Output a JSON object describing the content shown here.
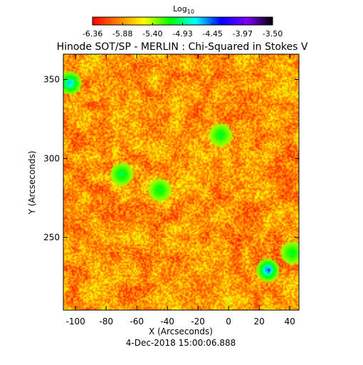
{
  "chart_data": {
    "type": "heatmap",
    "title": "Hinode SOT/SP - MERLIN : Chi-Squared in Stokes V",
    "xlabel": "X (Arcseconds)",
    "ylabel": "Y (Arcseconds)",
    "date": "4-Dec-2018 15:00:06.888",
    "xlim": [
      -108,
      46
    ],
    "ylim": [
      204,
      366
    ],
    "xticks": [
      -100,
      -80,
      -60,
      -40,
      -20,
      0,
      20,
      40
    ],
    "yticks": [
      250,
      300,
      350
    ],
    "colorbar": {
      "title_base": "Log",
      "title_sub": "10",
      "range": [
        -6.36,
        -3.5
      ],
      "tick_labels": [
        "-6.36",
        "-5.88",
        "-5.40",
        "-4.93",
        "-4.45",
        "-3.97",
        "-3.50"
      ],
      "colors": [
        "#ff0000",
        "#ff8000",
        "#ffff00",
        "#00ff00",
        "#00ffff",
        "#0000ff",
        "#8000ff",
        "#000000"
      ]
    },
    "field": {
      "typical_range": [
        -6.36,
        -5.4
      ],
      "high_value_patches": [
        {
          "x": 26,
          "y": 229,
          "value": -4.3
        },
        {
          "x": -104,
          "y": 348,
          "value": -4.5
        },
        {
          "x": -70,
          "y": 290,
          "value": -4.9
        },
        {
          "x": -45,
          "y": 280,
          "value": -5.0
        },
        {
          "x": -5,
          "y": 315,
          "value": -5.0
        },
        {
          "x": 42,
          "y": 240,
          "value": -5.0
        }
      ]
    }
  }
}
